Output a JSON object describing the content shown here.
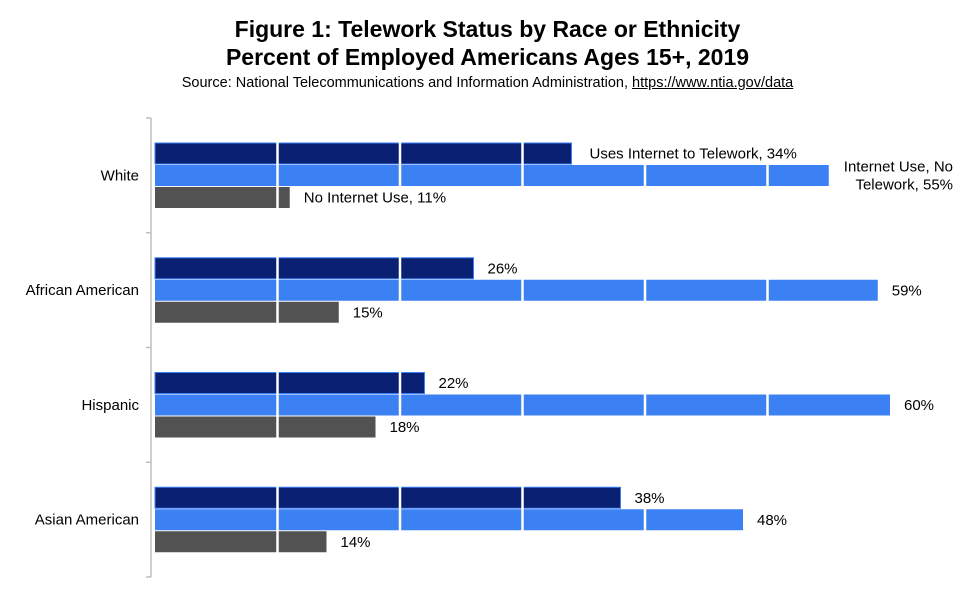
{
  "header": {
    "title_line1": "Figure 1: Telework Status by Race or Ethnicity",
    "title_line2": "Percent of Employed Americans Ages 15+, 2019",
    "source_prefix": "Source: National Telecommunications and Information Administration,",
    "source_link": "https://www.ntia.gov/data"
  },
  "chart_data": {
    "type": "bar",
    "orientation": "horizontal",
    "title": "Figure 1: Telework Status by Race or Ethnicity",
    "subtitle": "Percent of Employed Americans Ages 15+, 2019",
    "categories": [
      "White",
      "African American",
      "Hispanic",
      "Asian American"
    ],
    "xlim": [
      0,
      60
    ],
    "gridline_step": 10,
    "series": [
      {
        "name": "Uses Internet to Telework",
        "color": "#0a2173",
        "values": [
          34,
          26,
          22,
          38
        ],
        "labels": [
          "Uses Internet to Telework, 34%",
          "26%",
          "22%",
          "38%"
        ]
      },
      {
        "name": "Internet Use, No Telework",
        "color": "#3b81f4",
        "values": [
          55,
          59,
          60,
          48
        ],
        "labels": [
          [
            "Internet Use, No",
            "Telework, 55%"
          ],
          "59%",
          "60%",
          "48%"
        ]
      },
      {
        "name": "No Internet Use",
        "color": "#525252",
        "values": [
          11,
          15,
          18,
          14
        ],
        "labels": [
          "No Internet Use, 11%",
          "15%",
          "18%",
          "14%"
        ]
      }
    ]
  }
}
